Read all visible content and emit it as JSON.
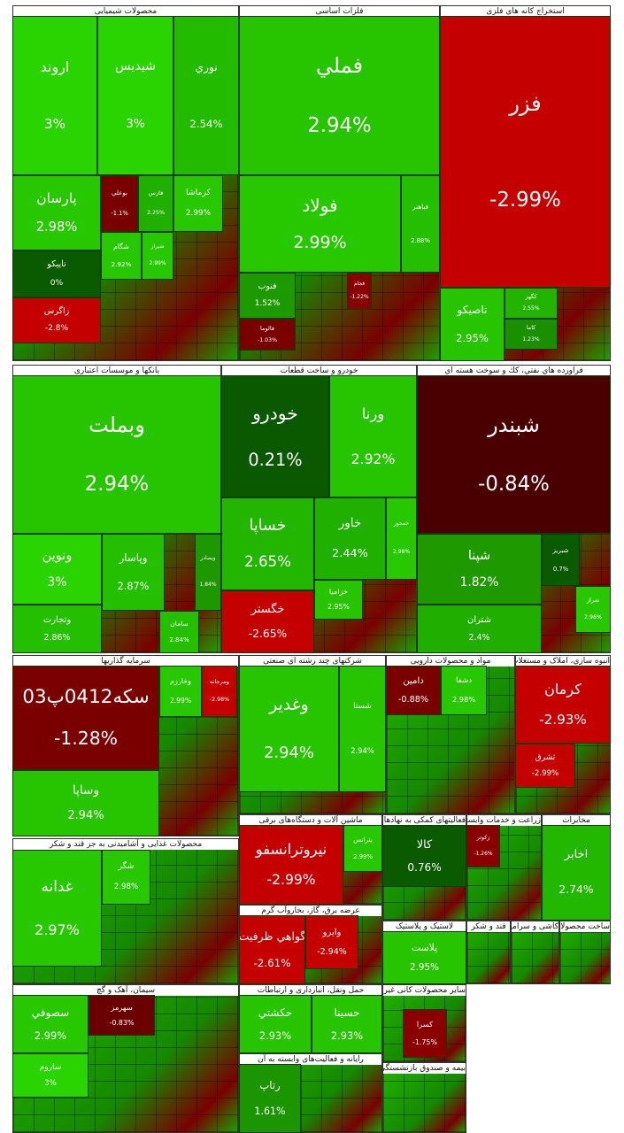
{
  "sectors": [
    {
      "title": "محصولات شیمیایی",
      "tiles": [
        {
          "name": "اروند",
          "change": "3%",
          "color": "#2ad400"
        },
        {
          "name": "شیدیس",
          "change": "3%",
          "color": "#2ad400"
        },
        {
          "name": "نوري",
          "change": "2.54%",
          "color": "#22bb00"
        },
        {
          "name": "پارسان",
          "change": "2.98%",
          "color": "#27c800"
        },
        {
          "name": "تاپيكو",
          "change": "0%",
          "color": "#0a5a00"
        },
        {
          "name": "زاگرس",
          "change": "-2.8%",
          "color": "#c40000"
        },
        {
          "name": "بوعلي",
          "change": "-1.1%",
          "color": "#7a0000"
        },
        {
          "name": "فارس",
          "change": "2.25%",
          "color": "#20b000"
        },
        {
          "name": "كرماشا",
          "change": "2.99%",
          "color": "#27c800"
        },
        {
          "name": "شگام",
          "change": "2.92%",
          "color": "#27c800"
        },
        {
          "name": "شيراز",
          "change": "2.99%",
          "color": "#27c800"
        }
      ]
    },
    {
      "title": "فلزات اساسی",
      "tiles": [
        {
          "name": "فملي",
          "change": "2.94%",
          "color": "#27c400"
        },
        {
          "name": "فولاد",
          "change": "2.99%",
          "color": "#27c800"
        },
        {
          "name": "فباهنر",
          "change": "2.88%",
          "color": "#24c000"
        },
        {
          "name": "فنوب",
          "change": "1.52%",
          "color": "#1c9a00"
        },
        {
          "name": "فالوما",
          "change": "-1.03%",
          "color": "#7a0000"
        },
        {
          "name": "فجام",
          "change": "-1.22%",
          "color": "#8a0000"
        }
      ]
    },
    {
      "title": "استخراج کانه های فلزی",
      "tiles": [
        {
          "name": "فزر",
          "change": "-2.99%",
          "color": "#c40000"
        },
        {
          "name": "تاصيكو",
          "change": "2.95%",
          "color": "#27c400"
        },
        {
          "name": "كگهر",
          "change": "2.55%",
          "color": "#22b400"
        },
        {
          "name": "كاما",
          "change": "1.23%",
          "color": "#1a8f00"
        }
      ]
    },
    {
      "title": "بانکها و موسسات اعتباری",
      "tiles": [
        {
          "name": "وبملت",
          "change": "2.94%",
          "color": "#27c400"
        },
        {
          "name": "ونوين",
          "change": "3%",
          "color": "#2ad400"
        },
        {
          "name": "وتجارت",
          "change": "2.86%",
          "color": "#24c000"
        },
        {
          "name": "وپاسار",
          "change": "2.87%",
          "color": "#24c000"
        },
        {
          "name": "وبصادر",
          "change": "1.84%",
          "color": "#1e9800"
        },
        {
          "name": "سامان",
          "change": "2.84%",
          "color": "#24c000"
        }
      ]
    },
    {
      "title": "خودرو و ساخت قطعات",
      "tiles": [
        {
          "name": "خودرو",
          "change": "0.21%",
          "color": "#0a5800"
        },
        {
          "name": "ورنا",
          "change": "2.92%",
          "color": "#27c400"
        },
        {
          "name": "خساپا",
          "change": "2.65%",
          "color": "#22b600"
        },
        {
          "name": "خگستر",
          "change": "-2.65%",
          "color": "#c40000"
        },
        {
          "name": "خاور",
          "change": "2.44%",
          "color": "#20b000"
        },
        {
          "name": "خمحور",
          "change": "2.98%",
          "color": "#27c800"
        },
        {
          "name": "خزامیا",
          "change": "2.95%",
          "color": "#27c400"
        }
      ]
    },
    {
      "title": "فراورده هاي نفتي، كك و سوخت هسته اي",
      "tiles": [
        {
          "name": "شبندر",
          "change": "-0.84%",
          "color": "#4a0000"
        },
        {
          "name": "شپنا",
          "change": "1.82%",
          "color": "#1e9a00"
        },
        {
          "name": "شتران",
          "change": "2.4%",
          "color": "#20ae00"
        },
        {
          "name": "شبريز",
          "change": "0.7%",
          "color": "#0a5a00"
        },
        {
          "name": "شراز",
          "change": "2.96%",
          "color": "#27c800"
        }
      ]
    },
    {
      "title": "سرمایه گذاریها",
      "tiles": [
        {
          "name": "سكه0412پ03",
          "change": "-1.28%",
          "color": "#7a0000"
        },
        {
          "name": "وساپا",
          "change": "2.94%",
          "color": "#27c400"
        },
        {
          "name": "وخارزم",
          "change": "2.99%",
          "color": "#27c800"
        },
        {
          "name": "ومرجانه",
          "change": "-2.98%",
          "color": "#c40000"
        }
      ]
    },
    {
      "title": "شرکتهای چند رشته ای صنعتی",
      "tiles": [
        {
          "name": "وغدير",
          "change": "2.94%",
          "color": "#27c400"
        },
        {
          "name": "شستا",
          "change": "2.94%",
          "color": "#27c400"
        }
      ]
    },
    {
      "title": "مواد و محصولات دارویی",
      "tiles": [
        {
          "name": "دامين",
          "change": "-0.88%",
          "color": "#7a0000"
        },
        {
          "name": "دشفا",
          "change": "2.98%",
          "color": "#27c800"
        }
      ]
    },
    {
      "title": "انبوه سازي، املاک و مستغلات",
      "tiles": [
        {
          "name": "كرمان",
          "change": "-2.93%",
          "color": "#c40000"
        },
        {
          "name": "ثشرق",
          "change": "-2.99%",
          "color": "#c40000"
        }
      ]
    },
    {
      "title": "محصولات غذایی و آشامیدنی به جز قند و شکر",
      "tiles": [
        {
          "name": "غدانه",
          "change": "2.97%",
          "color": "#27c800"
        },
        {
          "name": "شگر",
          "change": "2.98%",
          "color": "#27c800"
        }
      ]
    },
    {
      "title": "ماشین آلات و دستگاه‌های برقی",
      "tiles": [
        {
          "name": "نيروترانسفو",
          "change": "-2.99%",
          "color": "#c40000"
        },
        {
          "name": "بترانس",
          "change": "2.99%",
          "color": "#27c800"
        }
      ]
    },
    {
      "title": "فعالیتهای کمکی به نهادهای مالی واسط",
      "tiles": [
        {
          "name": "كالا",
          "change": "0.76%",
          "color": "#0a5a00"
        }
      ]
    },
    {
      "title": "زراعت و خدمات وابسته",
      "tiles": [
        {
          "name": "زكوثر",
          "change": "-1.26%",
          "color": "#8a0000"
        }
      ]
    },
    {
      "title": "مخابرات",
      "tiles": [
        {
          "name": "اخابر",
          "change": "2.74%",
          "color": "#22b800"
        }
      ]
    },
    {
      "title": "عرضه برق، گاز، بخاروآب گرم",
      "tiles": [
        {
          "name": "گواهي ظرفيت",
          "change": "-2.61%",
          "color": "#c40000"
        },
        {
          "name": "وايرو",
          "change": "-2.94%",
          "color": "#c40000"
        }
      ]
    },
    {
      "title": "لاستیک و پلاستیک",
      "tiles": [
        {
          "name": "پلاست",
          "change": "2.95%",
          "color": "#27c400"
        }
      ]
    },
    {
      "title": "سیمان، آهک و گچ",
      "tiles": [
        {
          "name": "سصوفي",
          "change": "2.99%",
          "color": "#27c800"
        },
        {
          "name": "ساروم",
          "change": "3%",
          "color": "#2ad400"
        },
        {
          "name": "سهرمز",
          "change": "-0.83%",
          "color": "#6a0000"
        }
      ]
    },
    {
      "title": "حمل ونقل، انبارداری و ارتباطات",
      "tiles": [
        {
          "name": "حكشتي",
          "change": "2.93%",
          "color": "#27c400"
        },
        {
          "name": "حسينا",
          "change": "2.93%",
          "color": "#27c400"
        }
      ]
    },
    {
      "title": "رایانه و فعالیت‌های وابسته به آن",
      "tiles": [
        {
          "name": "رتاپ",
          "change": "1.61%",
          "color": "#1c9600"
        }
      ]
    },
    {
      "title": "سایر محصولات کانی غیرفلزی",
      "tiles": [
        {
          "name": "كسرا",
          "change": "-1.75%",
          "color": "#8a0000"
        }
      ]
    },
    {
      "title": "بیمه و صندوق بازنشستگی به جزتامین اجتماعی",
      "tiles": []
    },
    {
      "title": "قند و شکر",
      "tiles": []
    },
    {
      "title": "کاشی و سرامیک",
      "tiles": []
    },
    {
      "title": "ساخت محصولات فلزی",
      "tiles": []
    }
  ]
}
